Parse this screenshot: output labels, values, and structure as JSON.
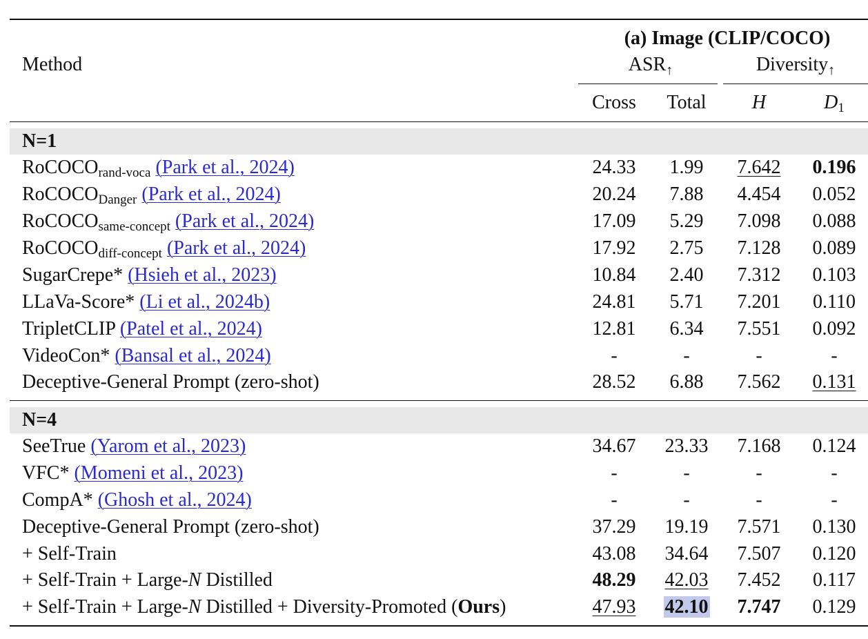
{
  "header": {
    "method": "Method",
    "group_title": "(a) Image (CLIP/COCO)",
    "asr_label": "ASR",
    "diversity_label": "Diversity",
    "up_arrow": "↑",
    "cols": {
      "cross": "Cross",
      "total": "Total",
      "h": "H",
      "d_base": "D",
      "d_sub": "1"
    }
  },
  "sections": [
    {
      "label": "N=1",
      "rows": [
        {
          "name": "RoCOCO",
          "sub": "rand-voca",
          "cite": "(Park et al., 2024)",
          "cross": "24.33",
          "total": "1.99",
          "h": "7.642",
          "d": "0.196"
        },
        {
          "name": "RoCOCO",
          "sub": "Danger",
          "cite": "(Park et al., 2024)",
          "cross": "20.24",
          "total": "7.88",
          "h": "4.454",
          "d": "0.052"
        },
        {
          "name": "RoCOCO",
          "sub": "same-concept",
          "cite": "(Park et al., 2024)",
          "cross": "17.09",
          "total": "5.29",
          "h": "7.098",
          "d": "0.088"
        },
        {
          "name": "RoCOCO",
          "sub": "diff-concept",
          "cite": "(Park et al., 2024)",
          "cross": "17.92",
          "total": "2.75",
          "h": "7.128",
          "d": "0.089"
        },
        {
          "name": "SugarCrepe*",
          "sub": "",
          "cite": "(Hsieh et al., 2023)",
          "cross": "10.84",
          "total": "2.40",
          "h": "7.312",
          "d": "0.103"
        },
        {
          "name": "LLaVa-Score*",
          "sub": "",
          "cite": "(Li et al., 2024b)",
          "cross": "24.81",
          "total": "5.71",
          "h": "7.201",
          "d": "0.110"
        },
        {
          "name": "TripletCLIP",
          "sub": "",
          "cite": "(Patel et al., 2024)",
          "cross": "12.81",
          "total": "6.34",
          "h": "7.551",
          "d": "0.092"
        },
        {
          "name": "VideoCon*",
          "sub": "",
          "cite": "(Bansal et al., 2024)",
          "cross": "-",
          "total": "-",
          "h": "-",
          "d": "-"
        },
        {
          "name": "Deceptive-General Prompt (zero-shot)",
          "sub": "",
          "cite": "",
          "cross": "28.52",
          "total": "6.88",
          "h": "7.562",
          "d": "0.131"
        }
      ]
    },
    {
      "label": "N=4",
      "rows": [
        {
          "name": "SeeTrue",
          "sub": "",
          "cite": "(Yarom et al., 2023)",
          "cross": "34.67",
          "total": "23.33",
          "h": "7.168",
          "d": "0.124"
        },
        {
          "name": "VFC*",
          "sub": "",
          "cite": "(Momeni et al., 2023)",
          "cross": "-",
          "total": "-",
          "h": "-",
          "d": "-"
        },
        {
          "name": "CompA*",
          "sub": "",
          "cite": "(Ghosh et al., 2024)",
          "cross": "-",
          "total": "-",
          "h": "-",
          "d": "-"
        },
        {
          "name": "Deceptive-General Prompt (zero-shot)",
          "sub": "",
          "cite": "",
          "cross": "37.29",
          "total": "19.19",
          "h": "7.571",
          "d": "0.130"
        },
        {
          "name": "+ Self-Train",
          "sub": "",
          "cite": "",
          "cross": "43.08",
          "total": "34.64",
          "h": "7.507",
          "d": "0.120"
        },
        {
          "name_parts": [
            "+ Self-Train + Large-",
            "N",
            " Distilled"
          ],
          "cross": "48.29",
          "total": "42.03",
          "h": "7.452",
          "d": "0.117"
        },
        {
          "name_parts": [
            "+ Self-Train + Large-",
            "N",
            " Distilled + Diversity-Promoted (",
            "Ours",
            ")"
          ],
          "cross": "47.93",
          "total": "42.10",
          "h": "7.747",
          "d": "0.129"
        }
      ]
    }
  ],
  "colors": {
    "citation": "#2a2ad0",
    "section_band": "#e8e8e8",
    "highlight": "#c2c9ea"
  }
}
